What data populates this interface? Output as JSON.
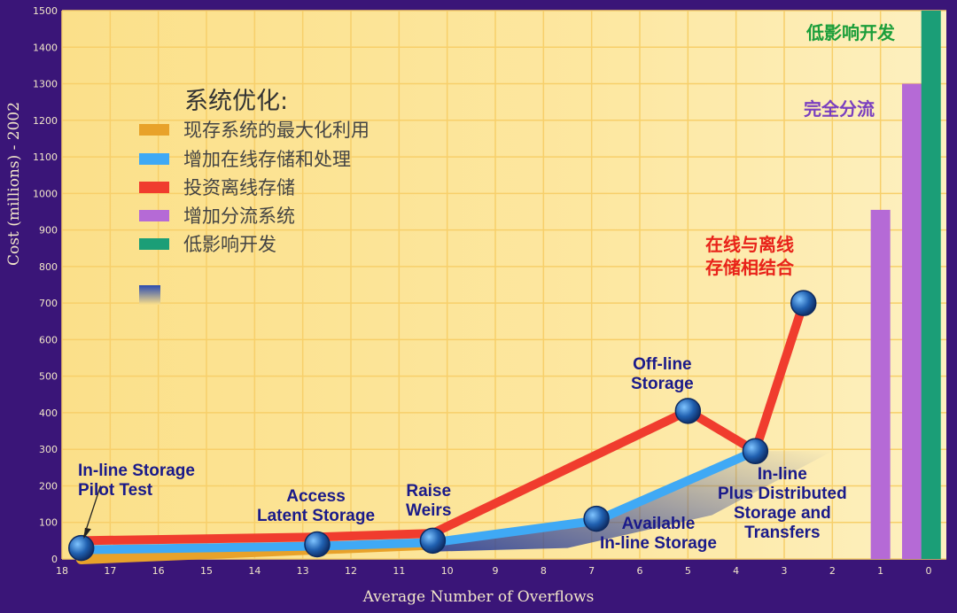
{
  "chart_data": {
    "type": "line",
    "xlabel": "Average Number of Overflows",
    "ylabel": "Cost (millions) - 2002",
    "x_ticks": [
      18,
      17,
      16,
      15,
      14,
      13,
      12,
      11,
      10,
      9,
      8,
      7,
      6,
      5,
      4,
      3,
      2,
      1,
      0
    ],
    "y_ticks": [
      0,
      100,
      200,
      300,
      400,
      500,
      600,
      700,
      800,
      900,
      1000,
      1100,
      1200,
      1300,
      1400,
      1500
    ],
    "xlim": [
      18,
      0
    ],
    "ylim": [
      0,
      1500
    ],
    "grid": true,
    "legend": {
      "title": "系统优化:",
      "placement": "top-left",
      "items": [
        {
          "label": "现存系统的最大化利用",
          "color": "#e8a22a"
        },
        {
          "label": "增加在线存储和处理",
          "color": "#3fa9f5"
        },
        {
          "label": "投资离线存储",
          "color": "#f03c2e"
        },
        {
          "label": "增加分流系统",
          "color": "#b56ad6"
        },
        {
          "label": "低影响开发",
          "color": "#1b9e77"
        }
      ]
    },
    "series": [
      {
        "name": "现存系统的最大化利用",
        "color": "#e8a22a",
        "x": [
          17.6,
          10.3
        ],
        "y": [
          0,
          40
        ]
      },
      {
        "name": "增加在线存储和处理",
        "color": "#3fa9f5",
        "x": [
          17.6,
          12.7,
          10.3,
          6.9,
          3.6
        ],
        "y": [
          25,
          35,
          45,
          105,
          295
        ]
      },
      {
        "name": "投资离线存储",
        "color": "#f03c2e",
        "x": [
          17.6,
          12.7,
          10.3,
          5.0,
          3.6,
          2.6
        ],
        "y": [
          50,
          60,
          70,
          405,
          295,
          700
        ]
      }
    ],
    "points": [
      {
        "x": 17.6,
        "y": 30
      },
      {
        "x": 12.7,
        "y": 40
      },
      {
        "x": 10.3,
        "y": 50
      },
      {
        "x": 6.9,
        "y": 110
      },
      {
        "x": 5.0,
        "y": 405
      },
      {
        "x": 3.6,
        "y": 295
      },
      {
        "x": 2.6,
        "y": 700
      }
    ],
    "bars": [
      {
        "name": "增加分流系统",
        "x": 1.0,
        "value": 955,
        "color": "#b56ad6"
      },
      {
        "name": "增加分流系统",
        "x": 0.35,
        "value": 1300,
        "color": "#b56ad6"
      },
      {
        "name": "低影响开发",
        "x": -0.05,
        "value": 1500,
        "color": "#1b9e77"
      }
    ],
    "annotations": [
      {
        "id": "a1",
        "lines": [
          "In-line Storage",
          "Pilot Test"
        ]
      },
      {
        "id": "a2",
        "lines": [
          "Access",
          "Latent Storage"
        ]
      },
      {
        "id": "a3",
        "lines": [
          "Raise",
          "Weirs"
        ]
      },
      {
        "id": "a4",
        "lines": [
          "Available",
          "In-line Storage"
        ]
      },
      {
        "id": "a5",
        "lines": [
          "Off-line",
          "Storage"
        ]
      },
      {
        "id": "a6",
        "lines": [
          "In-line",
          "Plus Distributed",
          "Storage and",
          "Transfers"
        ]
      },
      {
        "id": "a7",
        "lines": [
          "在线与离线",
          "存储相结合"
        ]
      },
      {
        "id": "a8",
        "lines": [
          "完全分流"
        ]
      },
      {
        "id": "a9",
        "lines": [
          "低影响开发"
        ]
      }
    ]
  }
}
